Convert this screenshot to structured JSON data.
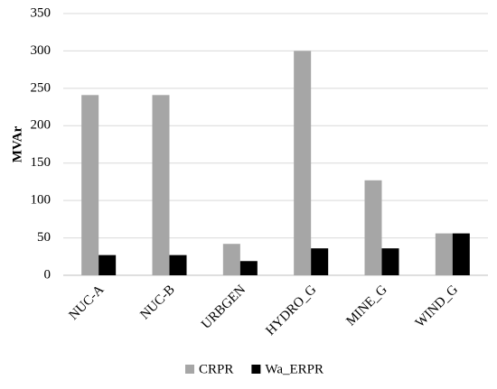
{
  "chart_data": {
    "type": "bar",
    "y_label": "MVAr",
    "categories": [
      "NUC-A",
      "NUC-B",
      "URBGEN",
      "HYDRO_G",
      "MINE_G",
      "WIND_G"
    ],
    "series": [
      {
        "name": "CRPR",
        "color": "#a6a6a6",
        "values": [
          241,
          241,
          42,
          300,
          127,
          56
        ]
      },
      {
        "name": "Wa_ERPR",
        "color": "#000000",
        "values": [
          27,
          27,
          19,
          36,
          36,
          56
        ]
      }
    ],
    "ylim": [
      0,
      350
    ],
    "yticks": [
      0,
      50,
      100,
      150,
      200,
      250,
      300,
      350
    ],
    "grid": true,
    "legend": "bottom"
  }
}
